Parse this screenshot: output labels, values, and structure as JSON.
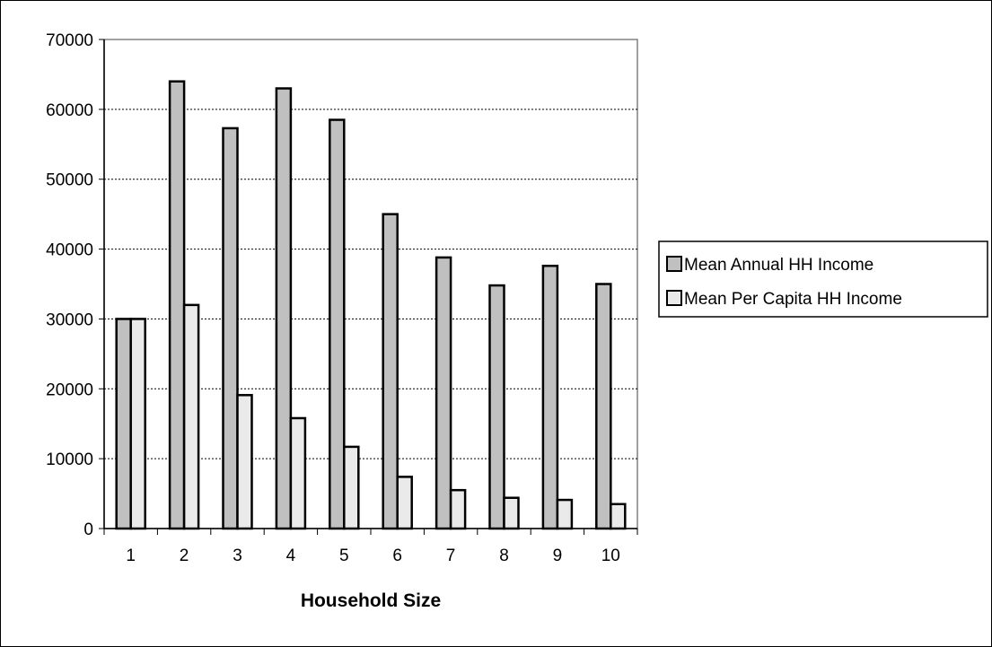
{
  "chart_data": {
    "type": "bar",
    "title": "",
    "xlabel": "Household Size",
    "ylabel": "",
    "categories": [
      "1",
      "2",
      "3",
      "4",
      "5",
      "6",
      "7",
      "8",
      "9",
      "10"
    ],
    "series": [
      {
        "name": "Mean Annual HH Income",
        "color": "#c0c0c0",
        "values": [
          30000,
          64000,
          57300,
          63000,
          58500,
          45000,
          38800,
          34800,
          37600,
          35000
        ]
      },
      {
        "name": "Mean Per Capita HH Income",
        "color": "#eaeaea",
        "values": [
          30000,
          32000,
          19100,
          15800,
          11700,
          7400,
          5500,
          4400,
          4100,
          3500
        ]
      }
    ],
    "ylim": [
      0,
      70000
    ],
    "yticks": [
      0,
      10000,
      20000,
      30000,
      40000,
      50000,
      60000,
      70000
    ],
    "grid": true,
    "legend": "right"
  }
}
